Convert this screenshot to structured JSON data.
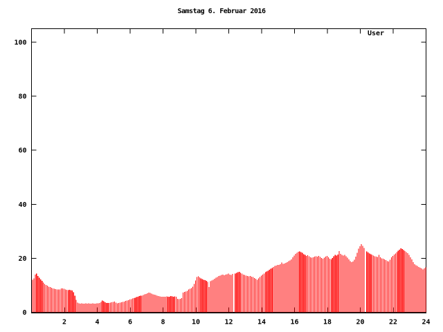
{
  "page": {
    "background": "#ffffff"
  },
  "legend": {
    "label": "User",
    "color": "#ff0000"
  },
  "chart_data": {
    "type": "bar",
    "title": "Samstag 6. Februar 2016",
    "series_name": "User",
    "xlabel": "",
    "ylabel": "",
    "xlim": [
      0,
      24
    ],
    "ylim": [
      0,
      105
    ],
    "x_ticks": [
      2,
      4,
      6,
      8,
      10,
      12,
      14,
      16,
      18,
      20,
      22,
      24
    ],
    "y_ticks": [
      0,
      20,
      40,
      60,
      80,
      100
    ],
    "grid": false,
    "legend_position": "top-right-inside",
    "bar_color": "#ff0000",
    "border_color": "#000000",
    "sample_interval_minutes": 5,
    "x_unit": "hour-of-day",
    "values": [
      12.0,
      12.6,
      13.9,
      14.3,
      13.5,
      12.8,
      12.2,
      11.6,
      11.0,
      10.5,
      10.1,
      9.8,
      9.5,
      9.3,
      9.1,
      8.9,
      8.7,
      8.6,
      8.5,
      8.4,
      8.5,
      8.8,
      8.9,
      8.7,
      8.5,
      8.3,
      8.2,
      8.3,
      8.2,
      8.1,
      7.4,
      6.2,
      4.6,
      3.6,
      3.3,
      3.2,
      3.3,
      3.2,
      3.2,
      3.3,
      3.2,
      3.3,
      3.2,
      3.2,
      3.3,
      3.2,
      3.2,
      3.3,
      3.3,
      3.4,
      3.9,
      4.4,
      4.1,
      3.7,
      3.5,
      3.4,
      3.5,
      3.6,
      3.7,
      3.8,
      4.0,
      3.6,
      3.3,
      3.4,
      3.6,
      3.7,
      3.8,
      4.0,
      4.2,
      4.4,
      4.5,
      4.7,
      4.9,
      5.1,
      5.3,
      5.4,
      5.6,
      5.8,
      6.0,
      6.2,
      6.1,
      6.4,
      6.6,
      6.8,
      7.0,
      7.3,
      7.2,
      6.9,
      6.7,
      6.5,
      6.4,
      6.2,
      6.0,
      5.9,
      5.8,
      5.8,
      5.7,
      5.8,
      5.9,
      5.7,
      5.8,
      6.0,
      5.9,
      5.8,
      5.9,
      5.8,
      5.0,
      4.9,
      5.0,
      5.2,
      7.3,
      7.5,
      7.7,
      8.0,
      8.4,
      8.7,
      9.0,
      9.5,
      10.5,
      11.8,
      13.1,
      13.3,
      12.9,
      12.5,
      12.3,
      12.1,
      11.9,
      11.6,
      11.3,
      9.4,
      11.5,
      11.8,
      12.1,
      12.4,
      12.8,
      13.1,
      13.4,
      13.6,
      13.8,
      14.0,
      13.7,
      13.9,
      14.1,
      14.3,
      14.0,
      13.8,
      14.2,
      0,
      14.4,
      14.6,
      14.8,
      15.0,
      14.6,
      14.3,
      14.0,
      13.8,
      13.6,
      13.4,
      13.3,
      13.4,
      13.2,
      13.0,
      12.7,
      12.4,
      12.1,
      12.5,
      13.0,
      13.6,
      14.0,
      14.4,
      14.8,
      15.1,
      15.4,
      15.8,
      16.1,
      16.4,
      16.8,
      17.1,
      17.3,
      17.5,
      17.6,
      17.8,
      18.4,
      17.9,
      18.1,
      18.3,
      18.6,
      18.9,
      19.2,
      19.6,
      20.3,
      21.0,
      21.6,
      22.0,
      22.4,
      22.6,
      22.3,
      22.0,
      21.5,
      21.2,
      20.9,
      21.1,
      20.7,
      20.4,
      20.2,
      20.4,
      20.6,
      20.8,
      20.6,
      20.9,
      20.5,
      20.1,
      19.8,
      20.2,
      20.6,
      20.9,
      20.3,
      19.9,
      19.6,
      20.1,
      20.7,
      21.2,
      21.0,
      21.4,
      22.7,
      21.6,
      21.2,
      21.0,
      21.3,
      20.8,
      20.2,
      19.6,
      19.0,
      18.6,
      18.8,
      19.5,
      20.6,
      22.0,
      23.5,
      24.5,
      25.2,
      24.6,
      23.8,
      0,
      22.6,
      22.1,
      21.8,
      21.5,
      21.3,
      21.0,
      20.8,
      20.6,
      20.5,
      21.2,
      20.4,
      20.0,
      19.8,
      19.6,
      19.3,
      19.0,
      18.8,
      19.5,
      20.3,
      20.9,
      21.4,
      21.8,
      22.3,
      22.8,
      23.2,
      23.7,
      23.4,
      23.0,
      22.7,
      22.3,
      21.9,
      21.3,
      20.4,
      19.6,
      18.6,
      17.8,
      17.4,
      17.1,
      16.8,
      16.5,
      16.2,
      15.9,
      16.3,
      16.6
    ]
  }
}
